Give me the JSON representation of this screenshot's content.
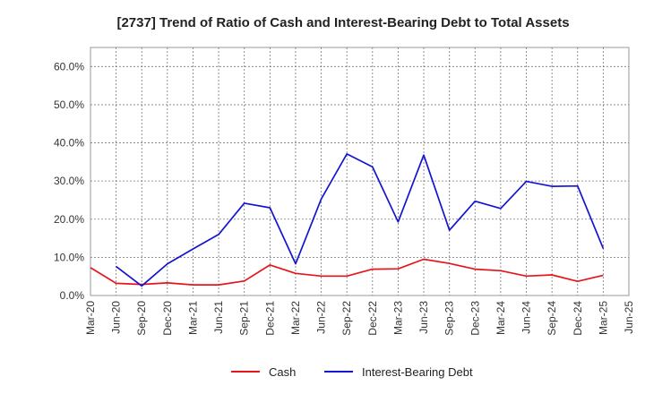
{
  "chart_data": {
    "type": "line",
    "title": "[2737]  Trend of Ratio of Cash and Interest-Bearing Debt to Total Assets",
    "xlabel": "",
    "ylabel": "",
    "x_tick_labels": [
      "Mar-20",
      "Jun-20",
      "Sep-20",
      "Dec-20",
      "Mar-21",
      "Jun-21",
      "Sep-21",
      "Dec-21",
      "Mar-22",
      "Jun-22",
      "Sep-22",
      "Dec-22",
      "Mar-23",
      "Jun-23",
      "Sep-23",
      "Dec-23",
      "Mar-24",
      "Jun-24",
      "Sep-24",
      "Dec-24",
      "Mar-25",
      "Jun-25"
    ],
    "y_tick_labels": [
      "0.0%",
      "10.0%",
      "20.0%",
      "30.0%",
      "40.0%",
      "50.0%",
      "60.0%"
    ],
    "y_ticks": [
      0,
      10,
      20,
      30,
      40,
      50,
      60
    ],
    "ylim": [
      0,
      65
    ],
    "grid": true,
    "legend_position": "bottom",
    "series": [
      {
        "name": "Cash",
        "color": "#e8141c",
        "values": [
          7.3,
          3.2,
          2.9,
          3.3,
          2.8,
          2.8,
          3.8,
          8.0,
          5.8,
          5.1,
          5.1,
          6.9,
          7.0,
          9.5,
          8.4,
          6.9,
          6.5,
          5.1,
          5.4,
          3.7,
          5.3,
          null
        ]
      },
      {
        "name": "Interest-Bearing Debt",
        "color": "#1414d2",
        "values": [
          null,
          7.6,
          2.5,
          8.3,
          12.2,
          16.0,
          24.2,
          23.0,
          8.3,
          25.3,
          37.1,
          33.7,
          19.3,
          36.8,
          17.1,
          24.7,
          22.8,
          29.9,
          28.6,
          28.7,
          12.3,
          null
        ]
      }
    ]
  }
}
